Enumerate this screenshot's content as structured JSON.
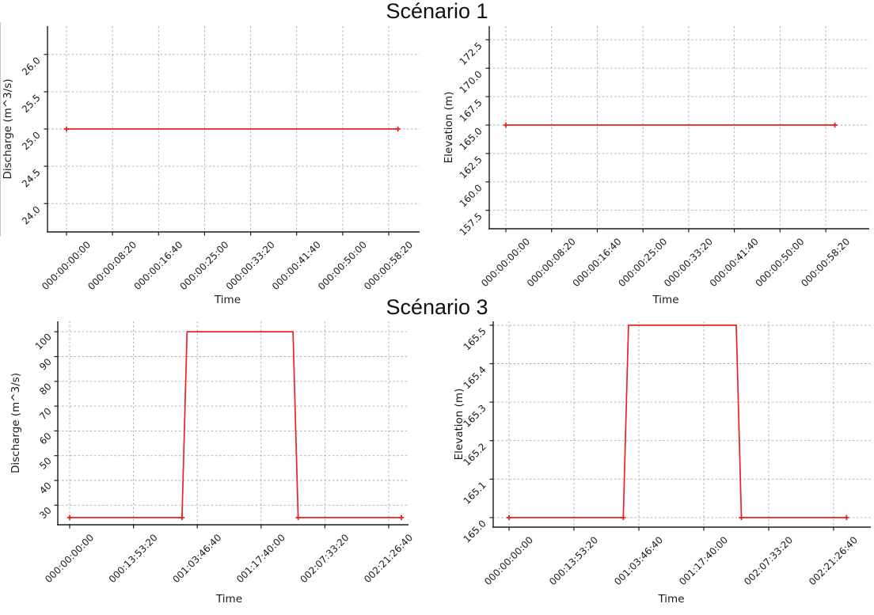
{
  "figure": {
    "scenario1_title": "Scénario 1",
    "scenario3_title": "Scénario 3"
  },
  "colors": {
    "line": "#ed2121",
    "grid": "#ababab",
    "axis": "#1a1a1a"
  },
  "chart_data": [
    {
      "id": "s1-discharge",
      "type": "line",
      "figure_title": "Scénario 1",
      "xlabel": "Time",
      "ylabel": "Discharge (m^3/s)",
      "line_color": "#ed2121",
      "grid": true,
      "xlim": [
        -206,
        3835
      ],
      "ylim": [
        23.62,
        26.38
      ],
      "x_ticks": [
        {
          "v": 0,
          "label": "000:00:00:00"
        },
        {
          "v": 500,
          "label": "000:00:08:20"
        },
        {
          "v": 1000,
          "label": "000:00:16:40"
        },
        {
          "v": 1500,
          "label": "000:00:25:00"
        },
        {
          "v": 2000,
          "label": "000:00:33:20"
        },
        {
          "v": 2500,
          "label": "000:00:41:40"
        },
        {
          "v": 3000,
          "label": "000:00:50:00"
        },
        {
          "v": 3500,
          "label": "000:00:58:20"
        }
      ],
      "y_ticks": [
        {
          "v": 24.0,
          "label": "24.0"
        },
        {
          "v": 24.5,
          "label": "24.5"
        },
        {
          "v": 25.0,
          "label": "25.0"
        },
        {
          "v": 25.5,
          "label": "25.5"
        },
        {
          "v": 26.0,
          "label": "26.0"
        }
      ],
      "points": [
        [
          0,
          25.0
        ],
        [
          3600,
          25.0
        ]
      ],
      "markers": [
        [
          0,
          25.0
        ],
        [
          3600,
          25.0
        ]
      ]
    },
    {
      "id": "s1-elevation",
      "type": "line",
      "figure_title": "Scénario 1",
      "xlabel": "Time",
      "ylabel": "Elevation (m)",
      "line_color": "#ed2121",
      "grid": true,
      "xlim": [
        -182,
        3976
      ],
      "ylim": [
        155.88,
        173.7
      ],
      "x_ticks": [
        {
          "v": 0,
          "label": "000:00:00:00"
        },
        {
          "v": 500,
          "label": "000:00:08:20"
        },
        {
          "v": 1000,
          "label": "000:00:16:40"
        },
        {
          "v": 1500,
          "label": "000:00:25:00"
        },
        {
          "v": 2000,
          "label": "000:00:33:20"
        },
        {
          "v": 2500,
          "label": "000:00:41:40"
        },
        {
          "v": 3000,
          "label": "000:00:50:00"
        },
        {
          "v": 3500,
          "label": "000:00:58:20"
        }
      ],
      "y_ticks": [
        {
          "v": 157.5,
          "label": "157.5"
        },
        {
          "v": 160.0,
          "label": "160.0"
        },
        {
          "v": 162.5,
          "label": "162.5"
        },
        {
          "v": 165.0,
          "label": "165.0"
        },
        {
          "v": 167.5,
          "label": "167.5"
        },
        {
          "v": 170.0,
          "label": "170.0"
        },
        {
          "v": 172.5,
          "label": "172.5"
        }
      ],
      "points": [
        [
          0,
          165.0
        ],
        [
          3600,
          165.0
        ]
      ],
      "markers": [
        [
          0,
          165.0
        ],
        [
          3600,
          165.0
        ]
      ]
    },
    {
      "id": "s3-discharge",
      "type": "line",
      "figure_title": "Scénario 3",
      "xlabel": "Time",
      "ylabel": "Discharge (m^3/s)",
      "line_color": "#ed2121",
      "grid": true,
      "xlim": [
        -9300,
        265500
      ],
      "ylim": [
        22.1,
        104.2
      ],
      "x_ticks": [
        {
          "v": 0,
          "label": "000:00:00:00"
        },
        {
          "v": 50000,
          "label": "000:13:53:20"
        },
        {
          "v": 100000,
          "label": "001:03:46:40"
        },
        {
          "v": 150000,
          "label": "001:17:40:00"
        },
        {
          "v": 200000,
          "label": "002:07:33:20"
        },
        {
          "v": 250000,
          "label": "002:21:26:40"
        }
      ],
      "y_ticks": [
        {
          "v": 30,
          "label": "30"
        },
        {
          "v": 40,
          "label": "40"
        },
        {
          "v": 50,
          "label": "50"
        },
        {
          "v": 60,
          "label": "60"
        },
        {
          "v": 70,
          "label": "70"
        },
        {
          "v": 80,
          "label": "80"
        },
        {
          "v": 90,
          "label": "90"
        },
        {
          "v": 100,
          "label": "100"
        }
      ],
      "points": [
        [
          0,
          25
        ],
        [
          88000,
          25
        ],
        [
          92000,
          100
        ],
        [
          175000,
          100
        ],
        [
          179000,
          25
        ],
        [
          260000,
          25
        ]
      ],
      "markers": [
        [
          0,
          25
        ],
        [
          88000,
          25
        ],
        [
          179000,
          25
        ],
        [
          260000,
          25
        ]
      ]
    },
    {
      "id": "s3-elevation",
      "type": "line",
      "figure_title": "Scénario 3",
      "xlabel": "Time",
      "ylabel": "Elevation (m)",
      "line_color": "#ed2121",
      "grid": true,
      "xlim": [
        -12200,
        278700
      ],
      "ylim": [
        164.975,
        165.51
      ],
      "x_ticks": [
        {
          "v": 0,
          "label": "000:00:00:00"
        },
        {
          "v": 50000,
          "label": "000:13:53:20"
        },
        {
          "v": 100000,
          "label": "001:03:46:40"
        },
        {
          "v": 150000,
          "label": "001:17:40:00"
        },
        {
          "v": 200000,
          "label": "002:07:33:20"
        },
        {
          "v": 250000,
          "label": "002:21:26:40"
        }
      ],
      "y_ticks": [
        {
          "v": 165.0,
          "label": "165.0"
        },
        {
          "v": 165.1,
          "label": "165.1"
        },
        {
          "v": 165.2,
          "label": "165.2"
        },
        {
          "v": 165.3,
          "label": "165.3"
        },
        {
          "v": 165.4,
          "label": "165.4"
        },
        {
          "v": 165.5,
          "label": "165.5"
        }
      ],
      "points": [
        [
          0,
          165.0
        ],
        [
          88000,
          165.0
        ],
        [
          92000,
          165.5
        ],
        [
          175000,
          165.5
        ],
        [
          179000,
          165.0
        ],
        [
          260000,
          165.0
        ]
      ],
      "markers": [
        [
          0,
          165.0
        ],
        [
          88000,
          165.0
        ],
        [
          179000,
          165.0
        ],
        [
          260000,
          165.0
        ]
      ]
    }
  ]
}
